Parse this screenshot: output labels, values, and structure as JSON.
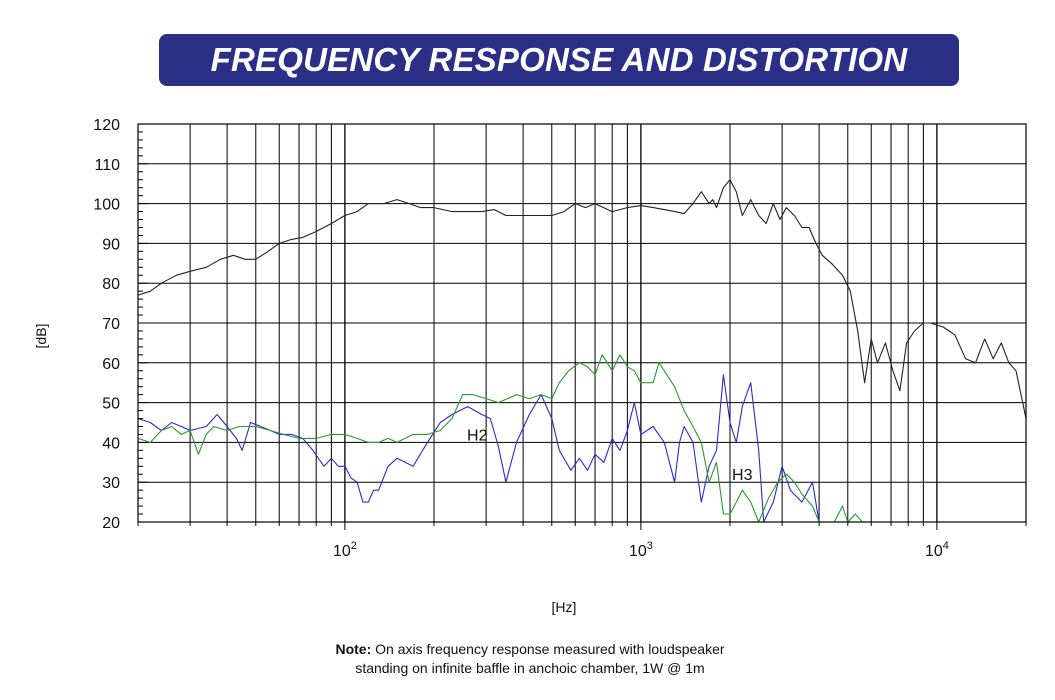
{
  "title": "FREQUENCY RESPONSE AND DISTORTION",
  "note": {
    "label": "Note:",
    "line1": "On axis frequency response measured with loudspeaker",
    "line2": "standing on infinite baffle in anchoic chamber, 1W @ 1m"
  },
  "colors": {
    "banner": "#2b2f86",
    "response": "#222222",
    "h2": "#2a2ad6",
    "h3": "#2a9a2a"
  },
  "chart_data": {
    "type": "line",
    "title": "FREQUENCY RESPONSE AND DISTORTION",
    "xlabel": "[Hz]",
    "ylabel": "[dB]",
    "xscale": "log",
    "xlim": [
      20,
      20000
    ],
    "ylim": [
      20,
      120
    ],
    "grid": true,
    "x_ticks": [
      {
        "value": 100,
        "base": "10",
        "exp": "2"
      },
      {
        "value": 1000,
        "base": "10",
        "exp": "3"
      },
      {
        "value": 10000,
        "base": "10",
        "exp": "4"
      }
    ],
    "y_ticks": [
      20,
      30,
      40,
      50,
      60,
      70,
      80,
      90,
      100,
      110,
      120
    ],
    "annotations": [
      {
        "text": "H2",
        "x": 280,
        "y": 42
      },
      {
        "text": "H3",
        "x": 2200,
        "y": 32
      }
    ],
    "series": [
      {
        "name": "",
        "key": "response",
        "points": [
          [
            20,
            77
          ],
          [
            22,
            78
          ],
          [
            24,
            80
          ],
          [
            27,
            82
          ],
          [
            30,
            83
          ],
          [
            34,
            84
          ],
          [
            38,
            86
          ],
          [
            42,
            87
          ],
          [
            46,
            86
          ],
          [
            50,
            86
          ],
          [
            55,
            88
          ],
          [
            60,
            90
          ],
          [
            66,
            91
          ],
          [
            72,
            91.5
          ],
          [
            80,
            93
          ],
          [
            90,
            95
          ],
          [
            100,
            97
          ],
          [
            110,
            98
          ],
          [
            120,
            100
          ],
          [
            135,
            100
          ],
          [
            150,
            101
          ],
          [
            165,
            100
          ],
          [
            180,
            99
          ],
          [
            200,
            99
          ],
          [
            230,
            98
          ],
          [
            260,
            98
          ],
          [
            290,
            98
          ],
          [
            320,
            98.5
          ],
          [
            350,
            97
          ],
          [
            400,
            97
          ],
          [
            450,
            97
          ],
          [
            500,
            97
          ],
          [
            550,
            98
          ],
          [
            600,
            100
          ],
          [
            650,
            99
          ],
          [
            700,
            100
          ],
          [
            800,
            98
          ],
          [
            900,
            99
          ],
          [
            1000,
            99.5
          ],
          [
            1100,
            99
          ],
          [
            1200,
            98.5
          ],
          [
            1300,
            98
          ],
          [
            1400,
            97.5
          ],
          [
            1500,
            100
          ],
          [
            1600,
            103
          ],
          [
            1700,
            100
          ],
          [
            1750,
            101
          ],
          [
            1800,
            99
          ],
          [
            1900,
            104
          ],
          [
            2000,
            106
          ],
          [
            2100,
            103
          ],
          [
            2200,
            97
          ],
          [
            2350,
            101
          ],
          [
            2500,
            97
          ],
          [
            2650,
            95
          ],
          [
            2800,
            100
          ],
          [
            2950,
            96
          ],
          [
            3100,
            99
          ],
          [
            3300,
            97
          ],
          [
            3500,
            94
          ],
          [
            3700,
            94
          ],
          [
            3900,
            90
          ],
          [
            4100,
            87
          ],
          [
            4400,
            85
          ],
          [
            4800,
            82
          ],
          [
            5100,
            78
          ],
          [
            5400,
            68
          ],
          [
            5700,
            55
          ],
          [
            6000,
            66
          ],
          [
            6300,
            60
          ],
          [
            6700,
            65
          ],
          [
            7100,
            58
          ],
          [
            7500,
            53
          ],
          [
            7900,
            65
          ],
          [
            8400,
            68
          ],
          [
            9000,
            70
          ],
          [
            9500,
            70
          ],
          [
            10500,
            69
          ],
          [
            11500,
            67
          ],
          [
            12500,
            61
          ],
          [
            13500,
            60
          ],
          [
            14500,
            66
          ],
          [
            15500,
            61
          ],
          [
            16500,
            65
          ],
          [
            17500,
            60
          ],
          [
            18500,
            58
          ],
          [
            19500,
            50
          ],
          [
            20000,
            46
          ]
        ]
      },
      {
        "name": "H2",
        "key": "h2",
        "points": [
          [
            20,
            46
          ],
          [
            22,
            45
          ],
          [
            24,
            43
          ],
          [
            26,
            45
          ],
          [
            28,
            44
          ],
          [
            30,
            43
          ],
          [
            34,
            44
          ],
          [
            37,
            47
          ],
          [
            40,
            44
          ],
          [
            43,
            41
          ],
          [
            45,
            38
          ],
          [
            48,
            45
          ],
          [
            52,
            44
          ],
          [
            56,
            43
          ],
          [
            60,
            42
          ],
          [
            66,
            42
          ],
          [
            72,
            41
          ],
          [
            78,
            38
          ],
          [
            85,
            34
          ],
          [
            90,
            36
          ],
          [
            95,
            34
          ],
          [
            100,
            34
          ],
          [
            105,
            31
          ],
          [
            110,
            30
          ],
          [
            115,
            25
          ],
          [
            120,
            25
          ],
          [
            125,
            28
          ],
          [
            130,
            28
          ],
          [
            140,
            34
          ],
          [
            150,
            36
          ],
          [
            170,
            34
          ],
          [
            190,
            40
          ],
          [
            210,
            45
          ],
          [
            230,
            47
          ],
          [
            260,
            49
          ],
          [
            290,
            47
          ],
          [
            310,
            46
          ],
          [
            330,
            39
          ],
          [
            350,
            30
          ],
          [
            380,
            40
          ],
          [
            420,
            47
          ],
          [
            460,
            52
          ],
          [
            500,
            46
          ],
          [
            530,
            38
          ],
          [
            580,
            33
          ],
          [
            620,
            36
          ],
          [
            660,
            33
          ],
          [
            700,
            37
          ],
          [
            750,
            35
          ],
          [
            800,
            41
          ],
          [
            850,
            38
          ],
          [
            900,
            43
          ],
          [
            950,
            50
          ],
          [
            1000,
            42
          ],
          [
            1100,
            44
          ],
          [
            1200,
            40
          ],
          [
            1300,
            30
          ],
          [
            1350,
            40
          ],
          [
            1400,
            44
          ],
          [
            1500,
            40
          ],
          [
            1600,
            25
          ],
          [
            1700,
            34
          ],
          [
            1800,
            38
          ],
          [
            1900,
            57
          ],
          [
            2000,
            45
          ],
          [
            2100,
            40
          ],
          [
            2200,
            49
          ],
          [
            2350,
            55
          ],
          [
            2500,
            38
          ],
          [
            2600,
            20
          ],
          [
            2800,
            25
          ],
          [
            3000,
            34
          ],
          [
            3200,
            28
          ],
          [
            3500,
            25
          ],
          [
            3800,
            30
          ],
          [
            4000,
            20
          ]
        ]
      },
      {
        "name": "H3",
        "key": "h3",
        "points": [
          [
            20,
            41
          ],
          [
            22,
            40
          ],
          [
            24,
            43
          ],
          [
            26,
            44
          ],
          [
            28,
            42
          ],
          [
            30,
            43
          ],
          [
            32,
            37
          ],
          [
            34,
            42
          ],
          [
            36,
            44
          ],
          [
            40,
            43
          ],
          [
            44,
            44
          ],
          [
            50,
            44
          ],
          [
            56,
            43
          ],
          [
            62,
            42
          ],
          [
            70,
            41
          ],
          [
            80,
            41
          ],
          [
            90,
            42
          ],
          [
            100,
            42
          ],
          [
            110,
            41
          ],
          [
            120,
            40
          ],
          [
            130,
            40
          ],
          [
            140,
            41
          ],
          [
            150,
            40
          ],
          [
            170,
            42
          ],
          [
            190,
            42
          ],
          [
            210,
            43
          ],
          [
            230,
            46
          ],
          [
            250,
            52
          ],
          [
            270,
            52
          ],
          [
            300,
            51
          ],
          [
            330,
            50
          ],
          [
            380,
            52
          ],
          [
            420,
            51
          ],
          [
            460,
            52
          ],
          [
            500,
            51
          ],
          [
            530,
            55
          ],
          [
            570,
            58
          ],
          [
            620,
            60
          ],
          [
            660,
            59
          ],
          [
            700,
            57
          ],
          [
            740,
            62
          ],
          [
            800,
            58
          ],
          [
            850,
            62
          ],
          [
            900,
            59
          ],
          [
            950,
            58
          ],
          [
            1000,
            55
          ],
          [
            1100,
            55
          ],
          [
            1150,
            60
          ],
          [
            1200,
            58
          ],
          [
            1300,
            54
          ],
          [
            1400,
            48
          ],
          [
            1500,
            44
          ],
          [
            1600,
            40
          ],
          [
            1700,
            30
          ],
          [
            1800,
            35
          ],
          [
            1900,
            22
          ],
          [
            2000,
            22
          ],
          [
            2100,
            25
          ],
          [
            2200,
            28
          ],
          [
            2350,
            25
          ],
          [
            2500,
            20
          ],
          [
            2700,
            26
          ],
          [
            2900,
            30
          ],
          [
            3100,
            32
          ],
          [
            3300,
            30
          ],
          [
            3500,
            27
          ],
          [
            3800,
            24
          ],
          [
            4000,
            20
          ],
          [
            4500,
            20
          ],
          [
            4800,
            24
          ],
          [
            5000,
            20
          ],
          [
            5300,
            22
          ],
          [
            5600,
            20
          ]
        ]
      }
    ]
  }
}
